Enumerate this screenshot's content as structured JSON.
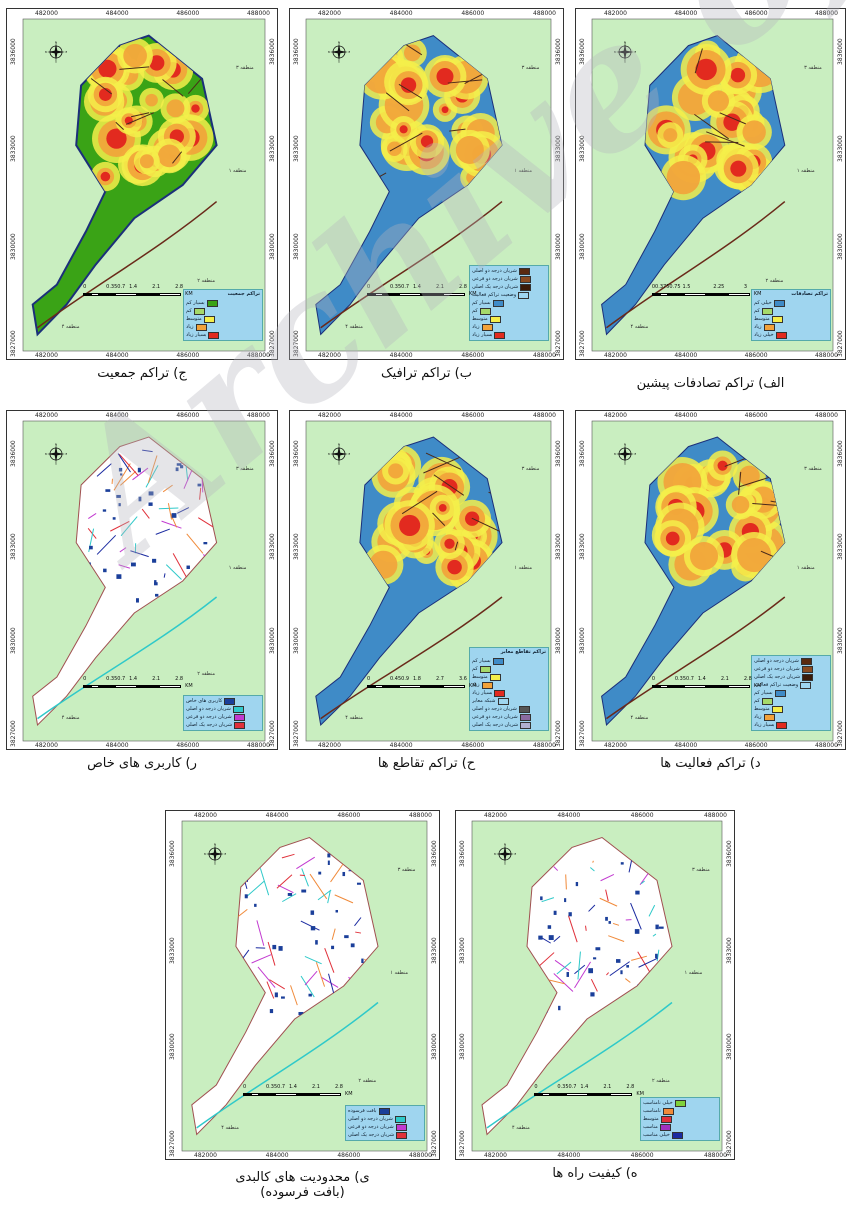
{
  "watermark": "Archive of SID",
  "x_ticks": [
    "482000",
    "484000",
    "486000",
    "488000"
  ],
  "y_ticks": [
    "3836000",
    "3833000",
    "3830000",
    "3827000"
  ],
  "units": "KM",
  "compass": {
    "n": "N",
    "s": "S",
    "e": "E",
    "w": "W"
  },
  "colors": {
    "land": "#c9eec0",
    "border": "#1b2f7a",
    "blue": "#3f8bc7",
    "green": "#3aa316",
    "yellow": "#f5ee4a",
    "orange": "#f2a23a",
    "red": "#e22a1f",
    "legend_bg": "#9fd5ef"
  },
  "panels": [
    {
      "id": "population",
      "caption": "ج) تراکم جمعیت",
      "fill": "green",
      "scale_labels": [
        "0",
        "0.350.7",
        "1.4",
        "2.1",
        "2.8"
      ],
      "legend": {
        "title": "تراکم جمعیت",
        "items": [
          {
            "label": "بسیار کم",
            "color": "#3aa316"
          },
          {
            "label": "کم",
            "color": "#a6d96a"
          },
          {
            "label": "متوسط",
            "color": "#f5ee4a"
          },
          {
            "label": "زیاد",
            "color": "#f2a23a"
          },
          {
            "label": "بسیار زیاد",
            "color": "#e22a1f"
          }
        ]
      },
      "districts": [
        "منطقه ۴",
        "منطقه ۲",
        "منطقه ۱",
        "منطقه ۳"
      ]
    },
    {
      "id": "traffic",
      "caption": "ب) تراکم ترافیک",
      "fill": "blue",
      "scale_labels": [
        "0",
        "0.350.7",
        "1.4",
        "2.1",
        "2.8"
      ],
      "legend": {
        "title": "",
        "items": [
          {
            "label": "شریان درجه دو اصلی",
            "color": "#5a2a10"
          },
          {
            "label": "شریان درجه دو فرعی",
            "color": "#8a4a20"
          },
          {
            "label": "شریان درجه یک اصلی",
            "color": "#3a1a08"
          },
          {
            "label": "وضعیت تراکم فعالیت",
            "color": "#9fd5ef"
          },
          {
            "label": "بسیار کم",
            "color": "#3f8bc7"
          },
          {
            "label": "کم",
            "color": "#a6d96a"
          },
          {
            "label": "متوسط",
            "color": "#f5ee4a"
          },
          {
            "label": "زیاد",
            "color": "#f2a23a"
          },
          {
            "label": "بسیار زیاد",
            "color": "#e22a1f"
          }
        ]
      },
      "districts": [
        "منطقه ۴",
        "منطقه ۲",
        "منطقه ۱",
        "منطقه ۳"
      ]
    },
    {
      "id": "accidents",
      "caption": "الف) تراکم تصادفات پیشین",
      "fill": "blue",
      "scale_labels": [
        "00.3750.75",
        "1.5",
        "2.25",
        "3"
      ],
      "legend": {
        "title": "تراکم تصادفات",
        "items": [
          {
            "label": "خیلی کم",
            "color": "#3f8bc7"
          },
          {
            "label": "کم",
            "color": "#a6d96a"
          },
          {
            "label": "متوسط",
            "color": "#f5ee4a"
          },
          {
            "label": "زیاد",
            "color": "#f2a23a"
          },
          {
            "label": "خیلی زیاد",
            "color": "#e22a1f"
          }
        ]
      },
      "districts": [
        "منطقه ۴",
        "منطقه ۲",
        "منطقه ۱",
        "منطقه ۳"
      ]
    },
    {
      "id": "special_use",
      "caption": "ر) کاربری های خاص",
      "fill": "white",
      "scale_labels": [
        "0",
        "0.350.7",
        "1.4",
        "2.1",
        "2.8"
      ],
      "legend": {
        "title": "",
        "items": [
          {
            "label": "کاربری های خاص",
            "color": "#1b3f9a"
          },
          {
            "label": "شریان درجه دو اصلی",
            "color": "#2fc9c9"
          },
          {
            "label": "شریان درجه دو فرعی",
            "color": "#c23ad0"
          },
          {
            "label": "شریان درجه یک اصلی",
            "color": "#e0303a"
          }
        ]
      },
      "districts": [
        "منطقه ۴",
        "منطقه ۲",
        "منطقه ۱",
        "منطقه ۳"
      ]
    },
    {
      "id": "intersections",
      "caption": "ح) تراکم تقاطع ها",
      "fill": "blue",
      "scale_labels": [
        "0",
        "0.450.9",
        "1.8",
        "2.7",
        "3.6"
      ],
      "legend": {
        "title": "تراکم تقاطع معابر",
        "items": [
          {
            "label": "بسیار کم",
            "color": "#3f8bc7"
          },
          {
            "label": "کم",
            "color": "#a6d96a"
          },
          {
            "label": "متوسط",
            "color": "#f5ee4a"
          },
          {
            "label": "زیاد",
            "color": "#f2a23a"
          },
          {
            "label": "بسیار زیاد",
            "color": "#e22a1f"
          },
          {
            "label": "شبکه معابر",
            "color": "#9fd5ef"
          },
          {
            "label": "شریان درجه دو اصلی",
            "color": "#555555"
          },
          {
            "label": "شریان درجه دو فرعی",
            "color": "#8a6aa0"
          },
          {
            "label": "شریان درجه یک اصلی",
            "color": "#b0b0d0"
          }
        ]
      },
      "districts": [
        "منطقه ۴",
        "منطقه ۲",
        "منطقه ۱",
        "منطقه ۳"
      ]
    },
    {
      "id": "activities",
      "caption": "د) تراکم فعالیت ها",
      "fill": "blue",
      "scale_labels": [
        "0",
        "0.350.7",
        "1.4",
        "2.1",
        "2.8"
      ],
      "legend": {
        "title": "",
        "items": [
          {
            "label": "شریان درجه دو اصلی",
            "color": "#5a2a10"
          },
          {
            "label": "شریان درجه دو فرعی",
            "color": "#8a4a20"
          },
          {
            "label": "شریان درجه یک اصلی",
            "color": "#3a1a08"
          },
          {
            "label": "وضعیت تراکم فعالیت",
            "color": "#9fd5ef"
          },
          {
            "label": "بسیار کم",
            "color": "#3f8bc7"
          },
          {
            "label": "کم",
            "color": "#a6d96a"
          },
          {
            "label": "متوسط",
            "color": "#f5ee4a"
          },
          {
            "label": "زیاد",
            "color": "#f2a23a"
          },
          {
            "label": "بسیار زیاد",
            "color": "#e22a1f"
          }
        ]
      },
      "districts": [
        "منطقه ۴",
        "منطقه ۲",
        "منطقه ۱",
        "منطقه ۳"
      ]
    },
    {
      "id": "physical_limits",
      "caption": "ی) محدودیت های کالبدی",
      "caption_line2": "(بافت فرسوده)",
      "fill": "white",
      "scale_labels": [
        "0",
        "0.350.7",
        "1.4",
        "2.1",
        "2.8"
      ],
      "legend": {
        "title": "",
        "items": [
          {
            "label": "بافت فرسوده",
            "color": "#1b3f9a"
          },
          {
            "label": "شریان درجه دو اصلی",
            "color": "#2fc9c9"
          },
          {
            "label": "شریان درجه دو فرعی",
            "color": "#c23ad0"
          },
          {
            "label": "شریان درجه یک اصلی",
            "color": "#e0303a"
          }
        ]
      },
      "districts": [
        "منطقه ۴",
        "منطقه ۲",
        "منطقه ۱",
        "منطقه ۳"
      ]
    },
    {
      "id": "road_quality",
      "caption": "ه) کیفیت راه ها",
      "fill": "white",
      "scale_labels": [
        "0",
        "0.350.7",
        "1.4",
        "2.1",
        "2.8"
      ],
      "legend": {
        "title": "",
        "items": [
          {
            "label": "خیلی نامناسب",
            "color": "#7fd13a"
          },
          {
            "label": "نامناسب",
            "color": "#f08a3a"
          },
          {
            "label": "متوسط",
            "color": "#e0303a"
          },
          {
            "label": "مناسب",
            "color": "#a030c0"
          },
          {
            "label": "خیلی مناسب",
            "color": "#1a2aa0"
          }
        ]
      },
      "districts": [
        "منطقه ۴",
        "منطقه ۲",
        "منطقه ۱",
        "منطقه ۳"
      ]
    }
  ]
}
